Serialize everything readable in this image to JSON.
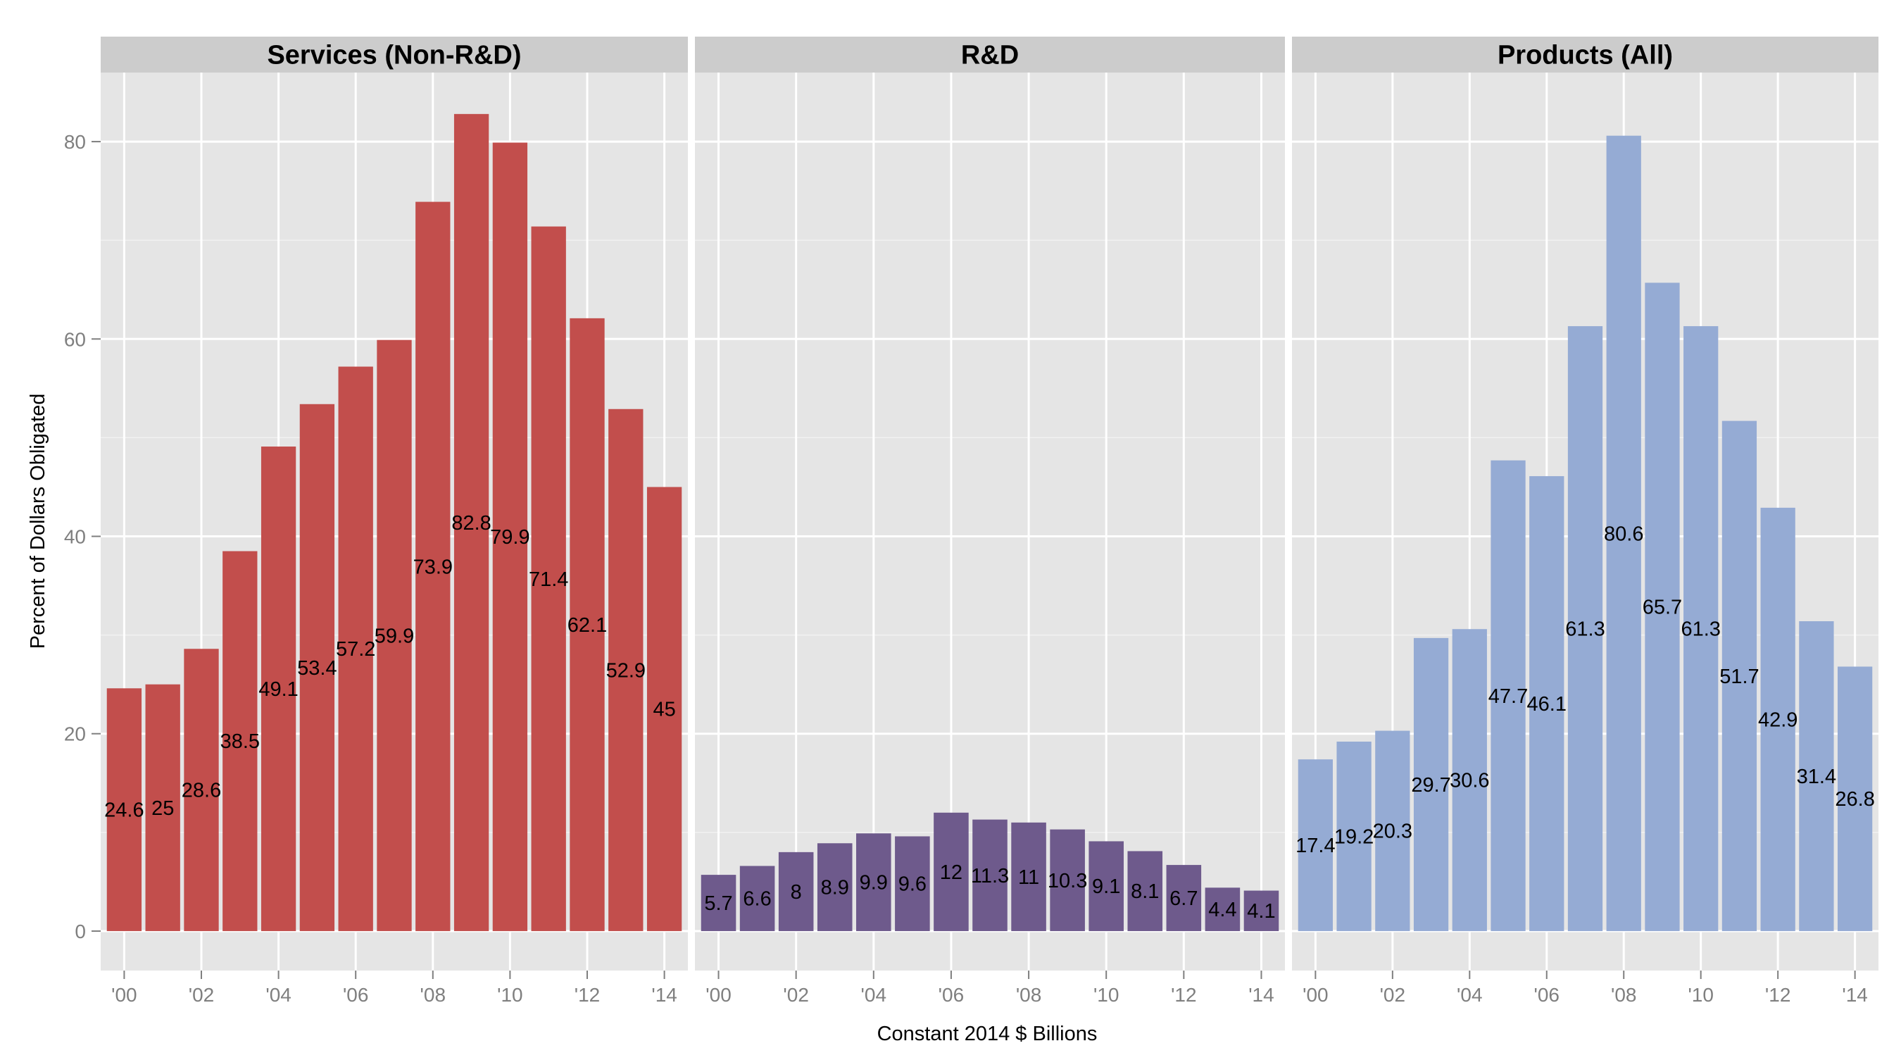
{
  "chart_data": {
    "type": "bar",
    "facets": [
      {
        "title": "Services (Non-R&D)",
        "color": "#c24e4c",
        "x": [
          "'00",
          "'01",
          "'02",
          "'03",
          "'04",
          "'05",
          "'06",
          "'07",
          "'08",
          "'09",
          "'10",
          "'11",
          "'12",
          "'13",
          "'14"
        ],
        "values": [
          24.6,
          25,
          28.6,
          38.5,
          49.1,
          53.4,
          57.2,
          59.9,
          73.9,
          82.8,
          79.9,
          71.4,
          62.1,
          52.9,
          45
        ],
        "labels": [
          "24.6",
          "25",
          "28.6",
          "38.5",
          "49.1",
          "53.4",
          "57.2",
          "59.9",
          "73.9",
          "82.8",
          "79.9",
          "71.4",
          "62.1",
          "52.9",
          "45"
        ]
      },
      {
        "title": "R&D",
        "color": "#6e5a8c",
        "x": [
          "'00",
          "'01",
          "'02",
          "'03",
          "'04",
          "'05",
          "'06",
          "'07",
          "'08",
          "'09",
          "'10",
          "'11",
          "'12",
          "'13",
          "'14"
        ],
        "values": [
          5.7,
          6.6,
          8,
          8.9,
          9.9,
          9.6,
          12,
          11.3,
          11,
          10.3,
          9.1,
          8.1,
          6.7,
          4.4,
          4.1
        ],
        "labels": [
          "5.7",
          "6.6",
          "8",
          "8.9",
          "9.9",
          "9.6",
          "12",
          "11.3",
          "11",
          "10.3",
          "9.1",
          "8.1",
          "6.7",
          "4.4",
          "4.1"
        ]
      },
      {
        "title": "Products (All)",
        "color": "#95abd4",
        "x": [
          "'00",
          "'01",
          "'02",
          "'03",
          "'04",
          "'05",
          "'06",
          "'07",
          "'08",
          "'09",
          "'10",
          "'11",
          "'12",
          "'13",
          "'14"
        ],
        "values": [
          17.4,
          19.2,
          20.3,
          29.7,
          30.6,
          47.7,
          46.1,
          61.3,
          80.6,
          65.7,
          61.3,
          51.7,
          42.9,
          31.4,
          26.8
        ],
        "labels": [
          "17.4",
          "19.2",
          "20.3",
          "29.7",
          "30.6",
          "47.7",
          "46.1",
          "61.3",
          "80.6",
          "65.7",
          "61.3",
          "51.7",
          "42.9",
          "31.4",
          "26.8"
        ]
      }
    ],
    "x_tick_labels": [
      "'00",
      "'02",
      "'04",
      "'06",
      "'08",
      "'10",
      "'12",
      "'14"
    ],
    "y_ticks": [
      0,
      20,
      40,
      60,
      80
    ],
    "ylim": [
      -4,
      87
    ],
    "xlabel": "Constant 2014 $ Billions",
    "ylabel": "Percent of Dollars Obligated",
    "grid": true,
    "legend": "none"
  }
}
